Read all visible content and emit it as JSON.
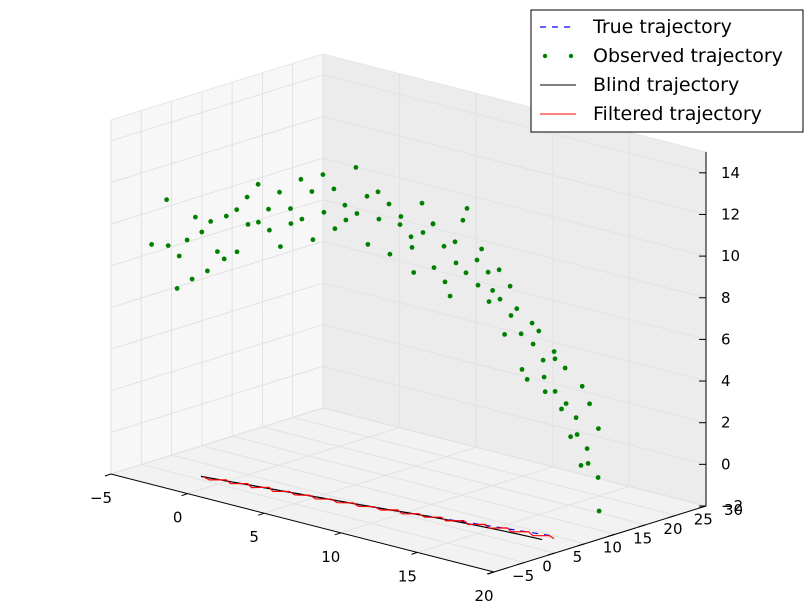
{
  "chart_data": {
    "type": "line",
    "projection": "3d",
    "title": "",
    "xlabel": "",
    "ylabel": "",
    "zlabel": "",
    "xlim": [
      -5,
      20
    ],
    "ylim": [
      -5,
      30
    ],
    "zlim": [
      -2,
      15
    ],
    "x_ticks": [
      "−5",
      "0",
      "5",
      "10",
      "15",
      "20"
    ],
    "y_ticks": [
      "−5",
      "0",
      "5",
      "10",
      "15",
      "20",
      "25",
      "30"
    ],
    "z_ticks": [
      "−2",
      "0",
      "2",
      "4",
      "6",
      "8",
      "10",
      "12",
      "14"
    ],
    "grid": true,
    "legend_position": "top-right",
    "legend": [
      {
        "label": "True trajectory",
        "style": "dashed",
        "color": "#0000ff"
      },
      {
        "label": "Observed trajectory",
        "style": "dots",
        "color": "#008000"
      },
      {
        "label": "Blind trajectory",
        "style": "solid",
        "color": "#000000"
      },
      {
        "label": "Filtered trajectory",
        "style": "solid",
        "color": "#ff0000"
      }
    ],
    "series": [
      {
        "name": "Observed trajectory",
        "marker": "dot",
        "color": "#008000",
        "points": [
          [
            -4.8,
            1.2,
            8.5
          ],
          [
            -3.9,
            1.4,
            10.8
          ],
          [
            -3.6,
            0.9,
            8.7
          ],
          [
            -3.2,
            1.7,
            8.2
          ],
          [
            -2.9,
            0.6,
            6.8
          ],
          [
            -2.6,
            1.5,
            9.1
          ],
          [
            -2.3,
            2.1,
            10.2
          ],
          [
            -2.0,
            0.8,
            7.4
          ],
          [
            -1.8,
            1.9,
            9.6
          ],
          [
            -1.5,
            2.6,
            10.1
          ],
          [
            -1.2,
            1.3,
            7.9
          ],
          [
            -0.9,
            2.2,
            8.8
          ],
          [
            -0.6,
            2.9,
            10.5
          ],
          [
            -0.3,
            1.8,
            8.6
          ],
          [
            0.0,
            3.1,
            10.9
          ],
          [
            0.3,
            2.4,
            9.0
          ],
          [
            0.6,
            3.3,
            11.6
          ],
          [
            0.9,
            2.7,
            10.4
          ],
          [
            1.2,
            3.6,
            12.3
          ],
          [
            1.5,
            2.9,
            10.6
          ],
          [
            1.8,
            3.8,
            11.2
          ],
          [
            2.1,
            3.2,
            10.3
          ],
          [
            2.4,
            4.1,
            12.1
          ],
          [
            2.7,
            3.5,
            9.6
          ],
          [
            3.0,
            4.4,
            11.4
          ],
          [
            3.3,
            3.7,
            10.8
          ],
          [
            3.6,
            4.6,
            12.9
          ],
          [
            3.9,
            4.0,
            11.1
          ],
          [
            4.2,
            4.9,
            12.4
          ],
          [
            4.5,
            4.3,
            10.2
          ],
          [
            4.8,
            5.2,
            13.3
          ],
          [
            5.1,
            4.6,
            11.6
          ],
          [
            5.4,
            5.5,
            12.7
          ],
          [
            5.7,
            4.9,
            10.9
          ],
          [
            6.0,
            5.8,
            12.0
          ],
          [
            6.3,
            5.2,
            11.4
          ],
          [
            6.6,
            6.1,
            13.9
          ],
          [
            6.9,
            5.5,
            11.8
          ],
          [
            7.2,
            6.4,
            12.6
          ],
          [
            7.5,
            5.8,
            10.4
          ],
          [
            7.8,
            6.7,
            12.9
          ],
          [
            8.1,
            6.1,
            11.7
          ],
          [
            8.4,
            7.0,
            12.4
          ],
          [
            8.7,
            6.4,
            10.1
          ],
          [
            9.0,
            7.3,
            11.5
          ],
          [
            9.3,
            6.7,
            12.0
          ],
          [
            9.6,
            7.6,
            11.0
          ],
          [
            9.9,
            7.0,
            10.6
          ],
          [
            10.2,
            7.9,
            12.7
          ],
          [
            10.5,
            7.3,
            11.4
          ],
          [
            10.8,
            8.2,
            11.8
          ],
          [
            11.1,
            7.6,
            9.8
          ],
          [
            11.4,
            8.5,
            10.8
          ],
          [
            11.7,
            7.9,
            9.2
          ],
          [
            12.0,
            8.8,
            11.1
          ],
          [
            12.3,
            8.2,
            10.2
          ],
          [
            12.6,
            9.1,
            9.7
          ],
          [
            12.9,
            8.5,
            12.9
          ],
          [
            13.2,
            9.4,
            10.4
          ],
          [
            13.5,
            8.8,
            9.3
          ],
          [
            13.8,
            9.7,
            9.9
          ],
          [
            14.1,
            9.1,
            8.6
          ],
          [
            14.4,
            10.0,
            10.1
          ],
          [
            14.7,
            9.4,
            8.8
          ],
          [
            15.0,
            10.3,
            9.4
          ],
          [
            15.3,
            9.7,
            8.1
          ],
          [
            15.6,
            10.6,
            7.2
          ],
          [
            15.9,
            10.0,
            5.6
          ],
          [
            16.2,
            10.9,
            7.8
          ],
          [
            16.5,
            10.3,
            6.9
          ],
          [
            16.8,
            11.2,
            6.1
          ],
          [
            17.1,
            10.6,
            5.4
          ],
          [
            17.4,
            11.5,
            6.6
          ],
          [
            17.7,
            10.9,
            4.8
          ],
          [
            18.0,
            11.8,
            5.9
          ],
          [
            18.3,
            11.2,
            4.3
          ],
          [
            18.6,
            12.1,
            3.6
          ],
          [
            18.9,
            11.5,
            2.9
          ],
          [
            19.2,
            12.4,
            2.2
          ],
          [
            19.5,
            11.8,
            1.6
          ],
          [
            19.8,
            12.7,
            0.9
          ],
          [
            20.1,
            12.1,
            -0.6
          ],
          [
            19.7,
            13.0,
            3.2
          ],
          [
            19.4,
            12.3,
            4.4
          ],
          [
            19.0,
            11.9,
            1.4
          ],
          [
            18.8,
            12.6,
            5.1
          ],
          [
            18.2,
            12.2,
            2.6
          ],
          [
            17.8,
            11.7,
            3.9
          ],
          [
            17.3,
            11.9,
            6.2
          ],
          [
            16.9,
            11.3,
            4.6
          ],
          [
            16.4,
            11.5,
            7.4
          ],
          [
            15.8,
            11.1,
            5.0
          ],
          [
            15.2,
            10.9,
            8.3
          ],
          [
            14.6,
            10.4,
            7.0
          ],
          [
            13.9,
            10.2,
            9.0
          ],
          [
            13.3,
            9.9,
            10.9
          ],
          [
            12.2,
            9.6,
            12.1
          ],
          [
            11.6,
            9.0,
            8.4
          ],
          [
            10.6,
            8.7,
            11.7
          ],
          [
            9.5,
            8.3,
            9.2
          ]
        ]
      },
      {
        "name": "True trajectory",
        "style": "dashed",
        "color": "#0000ff",
        "points": [
          [
            -1.5,
            1.0,
            -2
          ],
          [
            0.0,
            1.6,
            -2
          ],
          [
            1.5,
            2.2,
            -2
          ],
          [
            3.0,
            2.8,
            -2
          ],
          [
            4.5,
            3.4,
            -2
          ],
          [
            6.0,
            4.0,
            -2
          ],
          [
            7.5,
            4.6,
            -2
          ],
          [
            9.0,
            5.3,
            -2
          ],
          [
            10.5,
            6.0,
            -2
          ],
          [
            12.0,
            6.7,
            -2
          ],
          [
            13.5,
            7.5,
            -2
          ],
          [
            15.0,
            8.3,
            -2
          ],
          [
            16.5,
            9.1,
            -2
          ],
          [
            18.0,
            9.9,
            -2
          ]
        ]
      },
      {
        "name": "Blind trajectory",
        "style": "solid",
        "color": "#000000",
        "points": [
          [
            -1.5,
            1.0,
            -2
          ],
          [
            0.0,
            1.6,
            -2
          ],
          [
            1.5,
            2.2,
            -2
          ],
          [
            3.0,
            2.8,
            -2
          ],
          [
            4.5,
            3.4,
            -2
          ],
          [
            6.0,
            4.0,
            -2
          ],
          [
            7.5,
            4.6,
            -2
          ],
          [
            9.0,
            5.3,
            -2
          ],
          [
            10.5,
            6.0,
            -2
          ],
          [
            12.0,
            6.6,
            -2
          ],
          [
            13.5,
            7.1,
            -2
          ],
          [
            15.0,
            7.5,
            -2
          ],
          [
            16.5,
            7.8,
            -2
          ],
          [
            18.0,
            8.0,
            -2
          ]
        ]
      },
      {
        "name": "Filtered trajectory",
        "style": "solid",
        "color": "#ff0000",
        "points": [
          [
            -1.4,
            1.1,
            -2
          ],
          [
            -0.8,
            0.6,
            -2
          ],
          [
            -0.2,
            1.9,
            -2
          ],
          [
            0.4,
            1.1,
            -2
          ],
          [
            1.0,
            2.4,
            -2
          ],
          [
            1.6,
            1.5,
            -2
          ],
          [
            2.2,
            2.9,
            -2
          ],
          [
            2.8,
            2.0,
            -2
          ],
          [
            3.4,
            3.2,
            -2
          ],
          [
            4.0,
            2.6,
            -2
          ],
          [
            4.6,
            3.6,
            -2
          ],
          [
            5.2,
            3.0,
            -2
          ],
          [
            5.8,
            4.1,
            -2
          ],
          [
            6.4,
            3.5,
            -2
          ],
          [
            7.0,
            4.6,
            -2
          ],
          [
            7.6,
            4.0,
            -2
          ],
          [
            8.2,
            5.1,
            -2
          ],
          [
            8.8,
            4.6,
            -2
          ],
          [
            9.4,
            5.9,
            -2
          ],
          [
            10.0,
            5.1,
            -2
          ],
          [
            10.6,
            6.4,
            -2
          ],
          [
            11.2,
            5.8,
            -2
          ],
          [
            11.8,
            7.0,
            -2
          ],
          [
            12.4,
            6.3,
            -2
          ],
          [
            13.0,
            7.7,
            -2
          ],
          [
            13.6,
            6.9,
            -2
          ],
          [
            14.2,
            8.2,
            -2
          ],
          [
            14.8,
            7.4,
            -2
          ],
          [
            15.4,
            8.8,
            -2
          ],
          [
            16.0,
            8.0,
            -2
          ],
          [
            16.6,
            9.3,
            -2
          ],
          [
            17.2,
            8.5,
            -2
          ],
          [
            17.8,
            9.7,
            -2
          ],
          [
            18.3,
            9.2,
            -2
          ]
        ]
      }
    ]
  }
}
